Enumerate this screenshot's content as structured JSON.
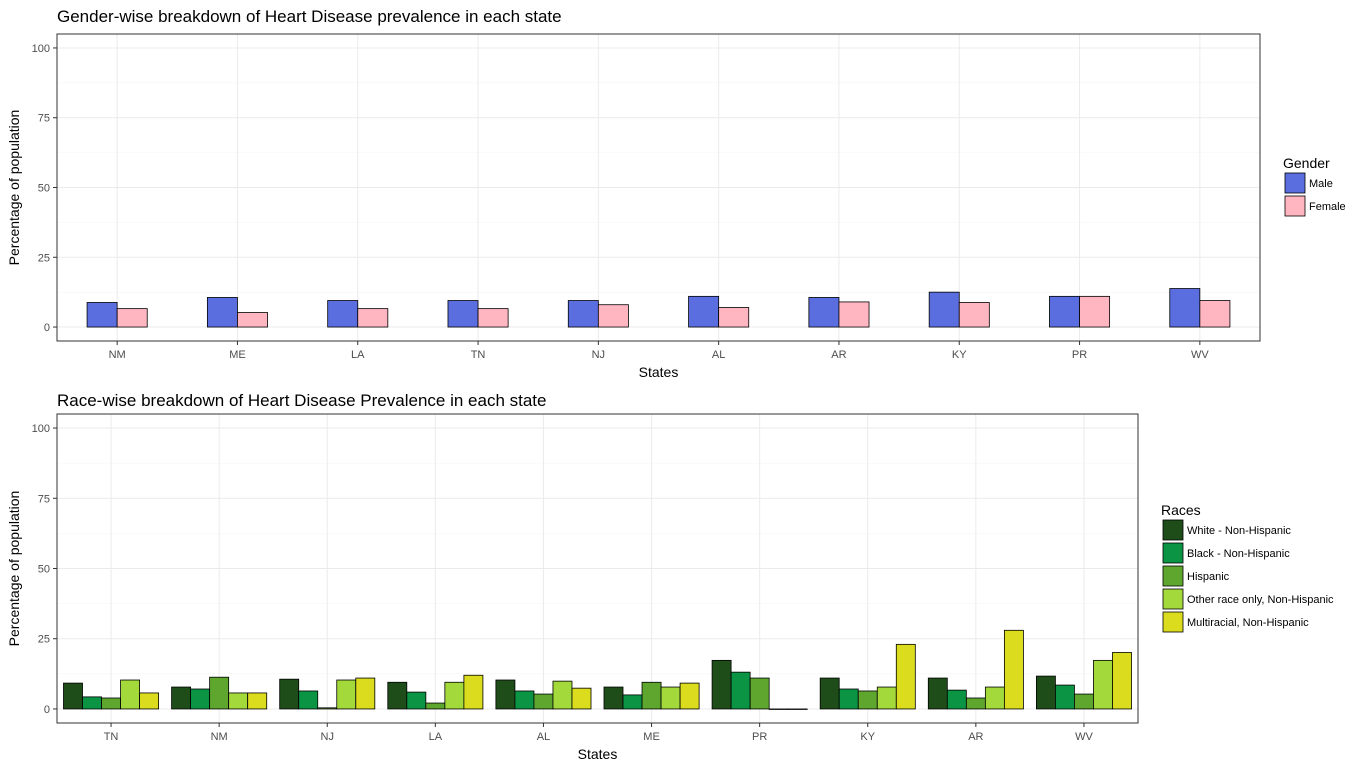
{
  "chart_data": [
    {
      "type": "bar",
      "title": "Gender-wise breakdown of Heart Disease prevalence in each state",
      "xlabel": "States",
      "ylabel": "Percentage of population",
      "ylim": [
        0,
        100
      ],
      "yticks": [
        0,
        25,
        50,
        75,
        100
      ],
      "grid": true,
      "legend_title": "Gender",
      "legend_position": "right",
      "categories": [
        "NM",
        "ME",
        "LA",
        "TN",
        "NJ",
        "AL",
        "AR",
        "KY",
        "PR",
        "WV"
      ],
      "series": [
        {
          "name": "Male",
          "color": "#5a6ee0",
          "values": [
            8.8,
            10.6,
            9.5,
            9.5,
            9.5,
            11.0,
            10.6,
            12.5,
            11.0,
            13.8
          ]
        },
        {
          "name": "Female",
          "color": "#ffb6c1",
          "values": [
            6.6,
            5.2,
            6.6,
            6.6,
            8.0,
            7.0,
            9.0,
            8.8,
            11.0,
            9.5
          ]
        }
      ]
    },
    {
      "type": "bar",
      "title": "Race-wise breakdown of Heart Disease Prevalence in each state",
      "xlabel": "States",
      "ylabel": "Percentage of population",
      "ylim": [
        0,
        100
      ],
      "yticks": [
        0,
        25,
        50,
        75,
        100
      ],
      "grid": true,
      "legend_title": "Races",
      "legend_position": "right",
      "categories": [
        "TN",
        "NM",
        "NJ",
        "LA",
        "AL",
        "ME",
        "PR",
        "KY",
        "AR",
        "WV"
      ],
      "series": [
        {
          "name": "White - Non-Hispanic",
          "color": "#1f4d1a",
          "values": [
            9.2,
            7.8,
            10.6,
            9.5,
            10.3,
            7.8,
            17.3,
            11.0,
            11.0,
            11.7
          ]
        },
        {
          "name": "Black - Non-Hispanic",
          "color": "#0a9444",
          "values": [
            4.3,
            7.1,
            6.4,
            6.0,
            6.4,
            5.0,
            13.1,
            7.1,
            6.7,
            8.5
          ]
        },
        {
          "name": "Hispanic",
          "color": "#5ea62e",
          "values": [
            3.9,
            11.3,
            0.4,
            2.1,
            5.3,
            9.5,
            11.0,
            6.4,
            3.9,
            5.3
          ]
        },
        {
          "name": "Other race only, Non-Hispanic",
          "color": "#a3d93b",
          "values": [
            10.3,
            5.7,
            10.3,
            9.5,
            9.9,
            7.8,
            0,
            7.8,
            7.8,
            17.3
          ]
        },
        {
          "name": "Multiracial, Non-Hispanic",
          "color": "#dcdc1e",
          "values": [
            5.7,
            5.7,
            11.0,
            12.0,
            7.4,
            9.2,
            0,
            23.0,
            28.0,
            20.1
          ]
        }
      ]
    }
  ]
}
